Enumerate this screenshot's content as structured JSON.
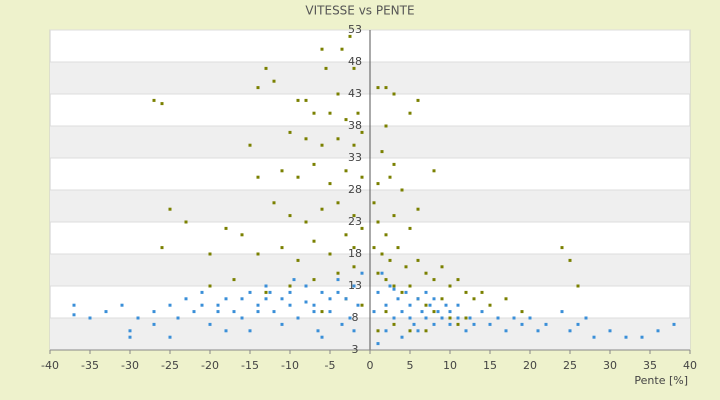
{
  "chart_data": {
    "type": "scatter",
    "title": "VITESSE vs PENTE",
    "x_label": "Pente [%]",
    "xlim": [
      -40,
      40
    ],
    "xticks": [
      -40,
      -35,
      -30,
      -25,
      -20,
      -15,
      -10,
      -5,
      0,
      5,
      10,
      15,
      20,
      25,
      30,
      35,
      40
    ],
    "ylim": [
      3,
      53
    ],
    "yticks": [
      3,
      8,
      13,
      18,
      23,
      28,
      33,
      38,
      43,
      48,
      53
    ],
    "series": [
      {
        "color": "#7a8000",
        "x": [
          -2.5,
          -3.5,
          -6,
          -2,
          -5.5,
          1,
          2,
          3,
          -27,
          -26,
          -13,
          -14,
          -12,
          -9,
          -8,
          -7,
          -5,
          -4,
          -3,
          -1.5,
          -10,
          -8,
          -6,
          -4,
          -2,
          -1,
          2,
          1.5,
          3,
          8,
          5,
          6,
          -15,
          -14,
          -11,
          -9,
          -7,
          -5,
          -3,
          -1,
          1,
          2.5,
          4,
          -25,
          -23,
          -18,
          -16,
          -12,
          -10,
          -8,
          -6,
          -4,
          -2,
          -1,
          0.5,
          1,
          2,
          3,
          5,
          6,
          -26,
          -20,
          -14,
          -11,
          -9,
          -7,
          -5,
          -3,
          -2,
          0.5,
          1.5,
          2.5,
          3.5,
          4.5,
          6,
          7,
          8,
          9,
          10,
          11,
          12,
          13,
          14,
          15,
          17,
          19,
          24,
          25,
          26,
          -20,
          -17,
          -13,
          -10,
          -7,
          -4,
          -2,
          1,
          2,
          3,
          4,
          5,
          6,
          7,
          8,
          9,
          10,
          11,
          12,
          3,
          5,
          7,
          -1,
          -3,
          -6,
          1,
          2
        ],
        "values": [
          52,
          50,
          50,
          47,
          47,
          44,
          44,
          43,
          42,
          41.5,
          47,
          44,
          45,
          42,
          42,
          40,
          40,
          43,
          39,
          40,
          37,
          36,
          35,
          36,
          35,
          37,
          38,
          34,
          32,
          31,
          40,
          42,
          35,
          30,
          31,
          30,
          32,
          29,
          31,
          30,
          29,
          30,
          28,
          25,
          23,
          22,
          21,
          26,
          24,
          23,
          25,
          26,
          24,
          22,
          26,
          23,
          21,
          24,
          22,
          25,
          19,
          18,
          18,
          19,
          17,
          20,
          18,
          21,
          19,
          19,
          18,
          17,
          19,
          16,
          17,
          15,
          14,
          16,
          13,
          14,
          12,
          11,
          12,
          10,
          11,
          9,
          19,
          17,
          13,
          13,
          14,
          12,
          13,
          14,
          15,
          16,
          15,
          14,
          13,
          12,
          13,
          11,
          10,
          9,
          11,
          8,
          7,
          8,
          7,
          6,
          6,
          10,
          11,
          9,
          6,
          9
        ]
      },
      {
        "color": "#3a8fd8",
        "x": [
          -37,
          -37,
          -35,
          -33,
          -31,
          -30,
          -29,
          -27,
          -25,
          -24,
          -23,
          -22,
          -21,
          -20,
          -19,
          -18,
          -17,
          -16,
          -15,
          -14,
          -13,
          -12,
          -11,
          -10,
          -9,
          -8,
          -7,
          -6,
          -5,
          -4,
          -3,
          -2,
          -1.5,
          -1,
          -3.5,
          -6.5,
          -9.5,
          -12.5,
          -16,
          -8,
          -5,
          -2.5,
          -7,
          -4,
          -10,
          -14,
          1,
          1.5,
          2,
          2.5,
          3,
          3.5,
          4,
          4.5,
          5,
          5.5,
          6,
          6.5,
          7,
          7.5,
          8,
          8.5,
          9,
          9.5,
          10,
          11,
          12,
          12.5,
          13,
          14,
          15,
          16,
          17,
          18,
          19,
          20,
          21,
          22,
          24,
          25,
          26,
          27,
          28,
          30,
          32,
          34,
          36,
          38,
          2,
          4,
          6,
          1,
          -18,
          -25,
          -30,
          -15,
          -11,
          -6,
          -2,
          0.5,
          3,
          7,
          10,
          5,
          8,
          11,
          -13,
          -19,
          -21,
          -27
        ],
        "values": [
          10,
          8.5,
          8,
          9,
          10,
          6,
          8,
          9,
          10,
          8,
          11,
          9,
          12,
          7,
          10,
          11,
          9,
          8,
          12,
          10,
          13,
          9,
          11,
          12,
          8,
          13,
          10,
          12,
          9,
          14,
          11,
          13,
          10,
          15,
          7,
          6,
          14,
          12,
          11,
          10.5,
          11,
          8,
          9,
          12,
          10,
          9,
          12,
          15,
          10,
          13,
          8,
          11,
          9,
          12,
          10,
          7,
          11,
          9,
          8,
          10,
          7,
          9,
          8,
          10,
          7,
          8,
          6,
          8,
          7,
          9,
          7,
          8,
          6,
          8,
          7,
          8,
          6,
          7,
          9,
          6,
          7,
          8,
          5,
          6,
          5,
          5,
          6,
          7,
          6,
          5,
          6,
          4,
          6,
          5,
          5,
          6,
          7,
          5,
          6,
          9,
          12.5,
          12,
          9,
          8,
          11,
          10,
          11,
          9,
          10,
          7
        ]
      }
    ]
  }
}
